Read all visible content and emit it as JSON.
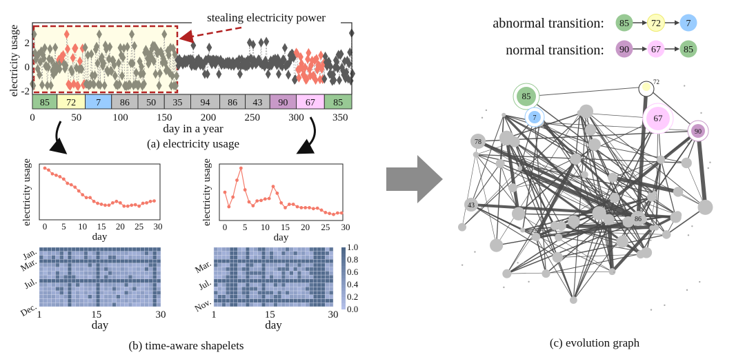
{
  "panel_a": {
    "caption": "(a) electricity usage",
    "ylabel": "electricity usage",
    "xlabel": "day in a year",
    "annotation": "stealing electricity power",
    "yticks": [
      "2",
      "0",
      "-2"
    ],
    "xticks": [
      "0",
      "50",
      "100",
      "150",
      "200",
      "250",
      "300",
      "350"
    ],
    "segments": [
      {
        "label": "85",
        "start": 0,
        "end": 28,
        "color": "#98c994"
      },
      {
        "label": "72",
        "start": 28,
        "end": 60,
        "color": "#fdfdc0"
      },
      {
        "label": "7",
        "start": 60,
        "end": 90,
        "color": "#99ccff"
      },
      {
        "label": "86",
        "start": 90,
        "end": 120,
        "color": "#c0c0c0"
      },
      {
        "label": "50",
        "start": 120,
        "end": 150,
        "color": "#c0c0c0"
      },
      {
        "label": "35",
        "start": 150,
        "end": 180,
        "color": "#c0c0c0"
      },
      {
        "label": "94",
        "start": 180,
        "end": 213,
        "color": "#c0c0c0"
      },
      {
        "label": "86",
        "start": 213,
        "end": 242,
        "color": "#c0c0c0"
      },
      {
        "label": "43",
        "start": 242,
        "end": 270,
        "color": "#c0c0c0"
      },
      {
        "label": "90",
        "start": 270,
        "end": 300,
        "color": "#c899c8"
      },
      {
        "label": "67",
        "start": 300,
        "end": 332,
        "color": "#ffccff"
      },
      {
        "label": "85",
        "start": 332,
        "end": 365,
        "color": "#98c994"
      }
    ],
    "highlight_color": "#b22222",
    "series_color": "#5a5a5a",
    "anomaly_color": "#f47a6a"
  },
  "panel_b": {
    "caption": "(b) time-aware shapelets",
    "shapelets": [
      {
        "ylabel": "electricity usage",
        "xlabel": "day",
        "xticks": [
          "0",
          "5",
          "10",
          "15",
          "20",
          "25",
          "30"
        ],
        "values": [
          1.0,
          0.96,
          0.88,
          0.85,
          0.82,
          0.77,
          0.68,
          0.65,
          0.6,
          0.52,
          0.44,
          0.38,
          0.38,
          0.3,
          0.26,
          0.24,
          0.22,
          0.22,
          0.27,
          0.3,
          0.27,
          0.2,
          0.2,
          0.22,
          0.23,
          0.2,
          0.26,
          0.27,
          0.3,
          0.31
        ]
      },
      {
        "ylabel": "electricity usage",
        "xlabel": "day",
        "xticks": [
          "0",
          "5",
          "10",
          "15",
          "20",
          "25",
          "30"
        ],
        "values": [
          0.5,
          0.2,
          0.4,
          0.75,
          1.0,
          0.55,
          0.3,
          0.22,
          0.32,
          0.33,
          0.36,
          0.37,
          0.62,
          0.48,
          0.28,
          0.18,
          0.25,
          0.25,
          0.2,
          0.18,
          0.18,
          0.18,
          0.16,
          0.17,
          0.13,
          0.08,
          0.06,
          0.04,
          0.07,
          0.07
        ]
      }
    ],
    "heatmaps": [
      {
        "xlabel": "day",
        "xticks": [
          "1",
          "15",
          "30"
        ],
        "yticks": [
          "Jan.",
          "Mar.",
          "Jul.",
          "Dec."
        ],
        "dark_rows": [
          0,
          3,
          8
        ],
        "dark_cols": [
          7,
          14,
          28
        ]
      },
      {
        "xlabel": "day",
        "xticks": [
          "1",
          "15",
          "30"
        ],
        "yticks": [
          "Mar.",
          "Jul.",
          "Nov."
        ],
        "dark_rows": [
          3,
          8,
          13
        ],
        "dark_cols": [
          4,
          5,
          8,
          12,
          25,
          26,
          27
        ]
      }
    ],
    "colorbar_ticks": [
      "1.0",
      "0.8",
      "0.6",
      "0.4",
      "0.2",
      "0.0"
    ],
    "color_low": "#b3bfe8",
    "color_high": "#4d6788"
  },
  "panel_c": {
    "caption": "(c) evolution graph",
    "abnormal_label": "abnormal transition:",
    "normal_label": "normal transition:",
    "abnormal_chain": [
      {
        "label": "85",
        "color": "#98c994"
      },
      {
        "label": "72",
        "color": "#fdfdc0"
      },
      {
        "label": "7",
        "color": "#99ccff"
      }
    ],
    "normal_chain": [
      {
        "label": "90",
        "color": "#c899c8"
      },
      {
        "label": "67",
        "color": "#ffccff"
      },
      {
        "label": "85",
        "color": "#98c994"
      }
    ],
    "labeled_nodes": [
      {
        "label": "85",
        "color": "#98c994"
      },
      {
        "label": "7",
        "color": "#99ccff"
      },
      {
        "label": "72",
        "color": "#fdfdc0"
      },
      {
        "label": "67",
        "color": "#ffccff"
      },
      {
        "label": "90",
        "color": "#c899c8"
      },
      {
        "label": "78",
        "color": "#c0c0c0"
      },
      {
        "label": "43",
        "color": "#c0c0c0"
      },
      {
        "label": "86",
        "color": "#c0c0c0"
      }
    ]
  }
}
